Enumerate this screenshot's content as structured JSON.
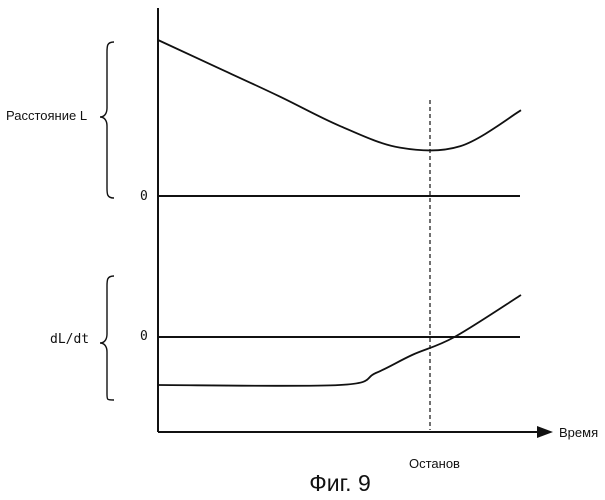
{
  "chart_data": [
    {
      "type": "line",
      "ylabel": "Расстояние L",
      "y_reference": "0",
      "series": [
        {
          "points": [
            [
              0,
              1.0
            ],
            [
              1,
              0.82
            ],
            [
              2,
              0.64
            ],
            [
              3,
              0.45
            ],
            [
              4,
              0.31
            ],
            [
              5,
              0.32
            ],
            [
              6,
              0.55
            ]
          ]
        }
      ]
    },
    {
      "type": "line",
      "ylabel": "dL/dt",
      "y_reference": "0",
      "series": [
        {
          "points": [
            [
              0,
              -0.8
            ],
            [
              3,
              -0.8
            ],
            [
              3.6,
              -0.6
            ],
            [
              4.2,
              -0.3
            ],
            [
              4.9,
              0.0
            ],
            [
              6,
              0.7
            ]
          ]
        }
      ]
    }
  ],
  "xlabel": "Время",
  "stop_label": "Останов",
  "caption": "Фиг. 9"
}
